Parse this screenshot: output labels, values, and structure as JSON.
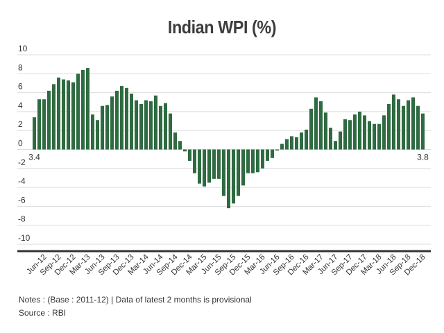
{
  "chart_data": {
    "type": "bar",
    "title": "Indian WPI (%)",
    "xlabel": "",
    "ylabel": "",
    "ylim": [
      -10,
      10
    ],
    "yticks": [
      10,
      8,
      6,
      4,
      2,
      0,
      -2,
      -4,
      -6,
      -8,
      -10
    ],
    "grid": true,
    "bar_color": "#2e6b40",
    "categories": [
      "Apr-12",
      "May-12",
      "Jun-12",
      "Jul-12",
      "Aug-12",
      "Sep-12",
      "Oct-12",
      "Nov-12",
      "Dec-12",
      "Jan-13",
      "Feb-13",
      "Mar-13",
      "Apr-13",
      "May-13",
      "Jun-13",
      "Jul-13",
      "Aug-13",
      "Sep-13",
      "Oct-13",
      "Nov-13",
      "Dec-13",
      "Jan-14",
      "Feb-14",
      "Mar-14",
      "Apr-14",
      "May-14",
      "Jun-14",
      "Jul-14",
      "Aug-14",
      "Sep-14",
      "Oct-14",
      "Nov-14",
      "Dec-14",
      "Jan-15",
      "Feb-15",
      "Mar-15",
      "Apr-15",
      "May-15",
      "Jun-15",
      "Jul-15",
      "Aug-15",
      "Sep-15",
      "Oct-15",
      "Nov-15",
      "Dec-15",
      "Jan-16",
      "Feb-16",
      "Mar-16",
      "Apr-16",
      "May-16",
      "Jun-16",
      "Jul-16",
      "Aug-16",
      "Sep-16",
      "Oct-16",
      "Nov-16",
      "Dec-16",
      "Jan-17",
      "Feb-17",
      "Mar-17",
      "Apr-17",
      "May-17",
      "Jun-17",
      "Jul-17",
      "Aug-17",
      "Sep-17",
      "Oct-17",
      "Nov-17",
      "Dec-17",
      "Jan-18",
      "Feb-18",
      "Mar-18",
      "Apr-18",
      "May-18",
      "Jun-18",
      "Jul-18",
      "Aug-18",
      "Sep-18",
      "Oct-18",
      "Nov-18",
      "Dec-18"
    ],
    "values": [
      3.4,
      5.3,
      5.3,
      6.2,
      6.9,
      7.6,
      7.4,
      7.3,
      7.1,
      8.0,
      8.4,
      8.6,
      3.7,
      3.1,
      4.6,
      4.7,
      5.6,
      6.2,
      6.7,
      6.5,
      5.9,
      5.2,
      4.8,
      5.2,
      5.1,
      5.7,
      4.6,
      4.9,
      3.8,
      1.8,
      0.9,
      -0.2,
      -1.2,
      -2.5,
      -3.6,
      -3.9,
      -3.5,
      -3.1,
      -3.1,
      -4.9,
      -6.2,
      -5.7,
      -4.9,
      -3.8,
      -2.5,
      -2.5,
      -2.4,
      -2.0,
      -1.2,
      -0.9,
      -0.1,
      0.6,
      1.1,
      1.4,
      1.3,
      1.8,
      2.1,
      4.3,
      5.5,
      5.1,
      3.9,
      2.3,
      0.9,
      1.9,
      3.2,
      3.1,
      3.7,
      4.0,
      3.6,
      3.0,
      2.7,
      2.7,
      3.6,
      4.8,
      5.8,
      5.3,
      4.6,
      5.2,
      5.5,
      4.6,
      3.8
    ],
    "xtick_labels": [
      "Jun-12",
      "Sep-12",
      "Dec-12",
      "Mar-13",
      "Jun-13",
      "Sep-13",
      "Dec-13",
      "Mar-14",
      "Jun-14",
      "Sep-14",
      "Dec-14",
      "Mar-15",
      "Jun-15",
      "Sep-15",
      "Dec-15",
      "Mar-16",
      "Jun-16",
      "Sep-16",
      "Dec-16",
      "Mar-17",
      "Jun-17",
      "Sep-17",
      "Dec-17",
      "Mar-18",
      "Jun-18",
      "Sep-18",
      "Dec-18"
    ],
    "annotations": [
      {
        "category": "Apr-12",
        "text": "3.4"
      },
      {
        "category": "Dec-18",
        "text": "3.8"
      }
    ]
  },
  "footer": {
    "notes": "Notes : (Base : 2011-12) | Data of latest 2 months is provisional",
    "source": "Source : RBI"
  }
}
